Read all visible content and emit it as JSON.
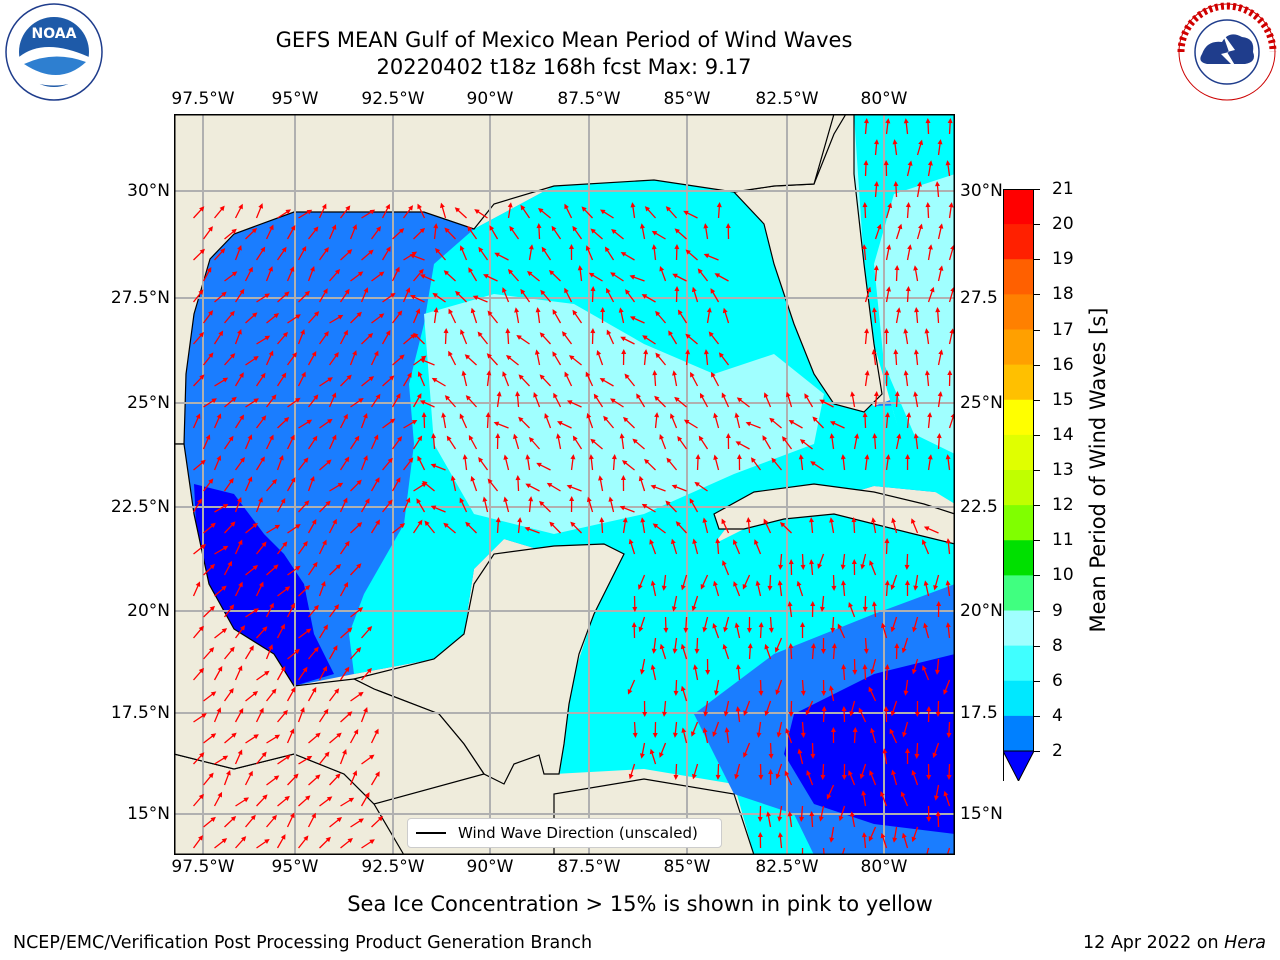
{
  "title": {
    "line1": "GEFS MEAN Gulf of Mexico Mean Period of Wind Waves",
    "line2": "20220402 t18z 168h fcst   Max: 9.17"
  },
  "logos": {
    "left": "NOAA",
    "left_ring": "NATIONAL OCEANIC AND ATMOSPHERIC ADMINISTRATION · U.S. DEPARTMENT OF COMMERCE",
    "right_ring": "NATIONAL WEATHER SERVICE"
  },
  "axes": {
    "lon_ticks": [
      "97.5°W",
      "95°W",
      "92.5°W",
      "90°W",
      "87.5°W",
      "85°W",
      "82.5°W",
      "80°W"
    ],
    "lat_ticks_left": [
      "30°N",
      "27.5°N",
      "25°N",
      "22.5°N",
      "20°N",
      "17.5°N",
      "15°N"
    ],
    "lat_ticks_right": [
      "30°N",
      "27.5",
      "25°N",
      "22.5",
      "20°N",
      "17.5",
      "15°N"
    ]
  },
  "legend": {
    "label": "Wind Wave Direction (unscaled)"
  },
  "colorbar": {
    "label": "Mean Period of Wind Waves [s]",
    "ticks": [
      "21",
      "20",
      "19",
      "18",
      "17",
      "16",
      "15",
      "14",
      "13",
      "12",
      "11",
      "10",
      "9",
      "8",
      "6",
      "4",
      "2"
    ],
    "colors": [
      "#ff0000",
      "#ff2000",
      "#ff4000",
      "#ff6000",
      "#ff8000",
      "#ffa000",
      "#ffc000",
      "#ffe000",
      "#ffff00",
      "#e0ff00",
      "#c0ff00",
      "#80ff00",
      "#40e000",
      "#00e000",
      "#40ff80",
      "#a0ffff",
      "#40ffff",
      "#00ffff",
      "#00e8ff",
      "#0080ff",
      "#0000ff"
    ],
    "underflow_color": "#0000ff"
  },
  "colors": {
    "land": "#efecdc",
    "water_light": "#a0ffff",
    "water_cyan": "#00ffff",
    "water_mid": "#1a7dff",
    "water_dark": "#0000ff",
    "arrows": "#ff0000",
    "grid": "#b0b0b0"
  },
  "caption": "Sea Ice Concentration > 15% is shown in pink to yellow",
  "footer": {
    "left": "NCEP/EMC/Verification Post Processing Product Generation Branch",
    "right_date": "12 Apr 2022 on ",
    "right_host": "Hera"
  }
}
